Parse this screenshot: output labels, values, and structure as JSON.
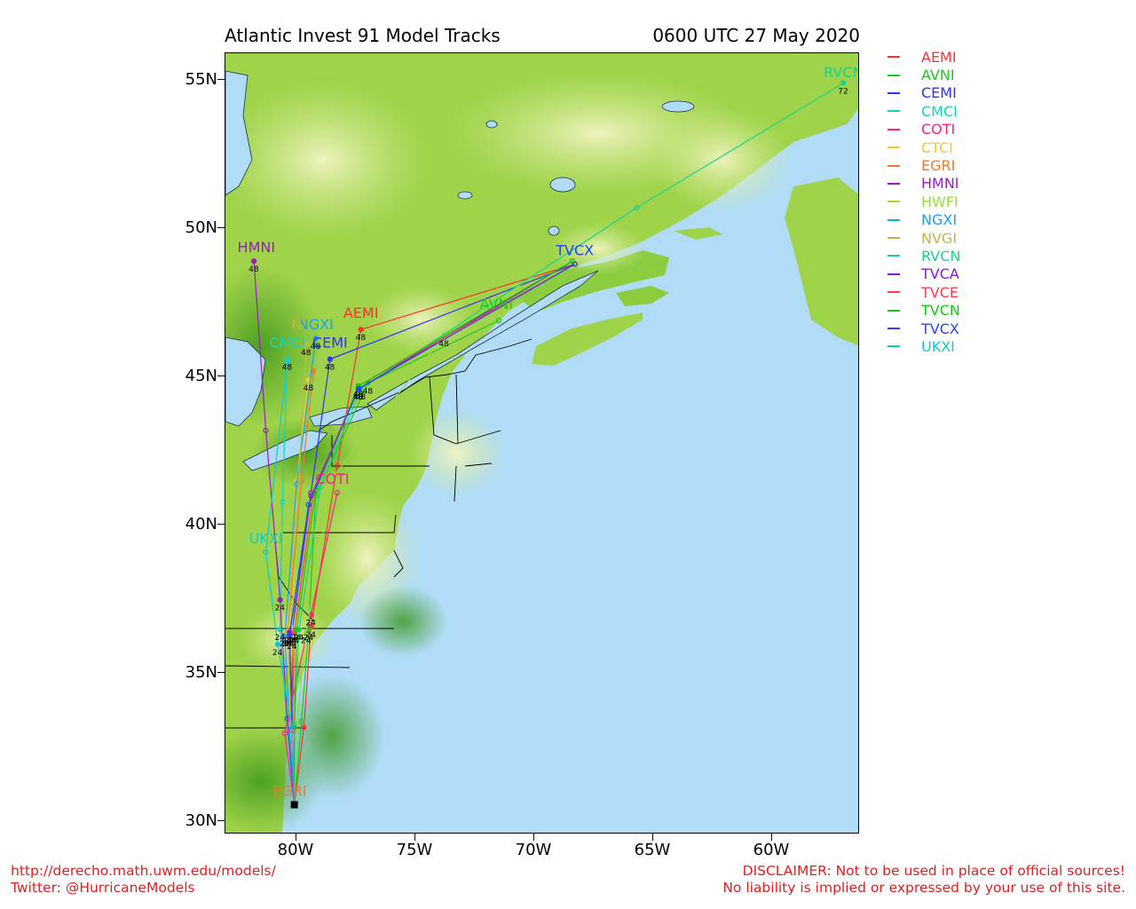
{
  "title_left": "Atlantic Invest 91 Model Tracks",
  "title_right": "0600 UTC 27 May 2020",
  "lat_labels": [
    "55N",
    "50N",
    "45N",
    "40N",
    "35N",
    "30N"
  ],
  "lon_labels": [
    "80W",
    "75W",
    "70W",
    "65W",
    "60W"
  ],
  "map_extent": {
    "lon_min": -83.2,
    "lon_max": -56.5,
    "lat_min": 29.6,
    "lat_max": 55.9
  },
  "colors": {
    "ocean": "#b0dcf7",
    "land_low": "#3e9a1a",
    "land_mid": "#9fd34a",
    "land_high": "#eef2b6",
    "border": "#000000"
  },
  "storm_start": {
    "lon": -80.3,
    "lat": 30.6
  },
  "legend": [
    {
      "name": "AEMI",
      "color": "#ff3030"
    },
    {
      "name": "AVNI",
      "color": "#1ec81e"
    },
    {
      "name": "CEMI",
      "color": "#3030ff"
    },
    {
      "name": "CMCI",
      "color": "#19d2b4"
    },
    {
      "name": "COTI",
      "color": "#ff1e8c"
    },
    {
      "name": "CTCI",
      "color": "#f0c83c"
    },
    {
      "name": "EGRI",
      "color": "#f0782d"
    },
    {
      "name": "HMNI",
      "color": "#a019c8"
    },
    {
      "name": "HWFI",
      "color": "#96dc3c"
    },
    {
      "name": "NGXI",
      "color": "#19a0f0"
    },
    {
      "name": "NVGI",
      "color": "#c8b43c"
    },
    {
      "name": "RVCN",
      "color": "#1ed28c"
    },
    {
      "name": "TVCA",
      "color": "#8c19d2"
    },
    {
      "name": "TVCE",
      "color": "#ff3c50"
    },
    {
      "name": "TVCN",
      "color": "#14c814"
    },
    {
      "name": "TVCX",
      "color": "#2846f0"
    },
    {
      "name": "UKXI",
      "color": "#14c8d2"
    }
  ],
  "tracks": [
    {
      "name": "AEMI",
      "color": "#ff3030",
      "points": [
        [
          -80.3,
          30.6
        ],
        [
          -79.9,
          33.2
        ],
        [
          -79.6,
          36.6
        ],
        [
          -78.5,
          42.0
        ],
        [
          -77.5,
          46.6
        ],
        [
          -68.5,
          48.8
        ]
      ],
      "hours": [
        "",
        "",
        "24",
        "",
        "48",
        ""
      ],
      "label": {
        "text": "AEMI",
        "lon": -77.5,
        "lat": 47.0
      }
    },
    {
      "name": "AVNI",
      "color": "#1ec81e",
      "points": [
        [
          -80.3,
          30.6
        ],
        [
          -80.0,
          33.4
        ],
        [
          -79.7,
          36.5
        ],
        [
          -79.4,
          41.0
        ],
        [
          -77.2,
          44.8
        ],
        [
          -71.7,
          46.9
        ]
      ],
      "hours": [
        "",
        "",
        "24",
        "",
        "48",
        ""
      ],
      "label": {
        "text": "AVNI",
        "lon": -71.8,
        "lat": 47.3
      }
    },
    {
      "name": "CEMI",
      "color": "#3030ff",
      "points": [
        [
          -80.3,
          30.6
        ],
        [
          -80.4,
          33.2
        ],
        [
          -80.4,
          36.4
        ],
        [
          -79.6,
          41.1
        ],
        [
          -78.8,
          45.6
        ],
        [
          -68.5,
          48.8
        ]
      ],
      "hours": [
        "",
        "",
        "24",
        "",
        "48",
        ""
      ],
      "label": {
        "text": "CEMI",
        "lon": -78.8,
        "lat": 46.0
      }
    },
    {
      "name": "CMCI",
      "color": "#19d2b4",
      "points": [
        [
          -80.3,
          30.6
        ],
        [
          -80.6,
          33.1
        ],
        [
          -80.9,
          36.5
        ],
        [
          -80.8,
          40.8
        ],
        [
          -80.6,
          45.6
        ]
      ],
      "hours": [
        "",
        "",
        "24",
        "",
        "48"
      ],
      "label": {
        "text": "CMCI",
        "lon": -80.6,
        "lat": 46.0
      }
    },
    {
      "name": "COTI",
      "color": "#ff1e8c",
      "points": [
        [
          -80.3,
          30.6
        ],
        [
          -80.7,
          33.0
        ],
        [
          -79.6,
          37.0
        ],
        [
          -78.5,
          41.1
        ]
      ],
      "hours": [
        "",
        "",
        "24",
        ""
      ],
      "label": {
        "text": "COTI",
        "lon": -78.7,
        "lat": 41.4
      }
    },
    {
      "name": "CTCI",
      "color": "#f0c83c",
      "points": [
        [
          -80.3,
          30.6
        ],
        [
          -80.5,
          33.3
        ],
        [
          -80.4,
          36.2
        ],
        [
          -80.2,
          41.5
        ],
        [
          -79.7,
          44.9
        ]
      ],
      "hours": [
        "",
        "",
        "24",
        "",
        "48"
      ],
      "label": null
    },
    {
      "name": "EGRI",
      "color": "#f0782d",
      "points": [
        [
          -80.3,
          30.6
        ],
        [
          -80.3,
          33.1
        ],
        [
          -80.6,
          36.3
        ],
        [
          -80.0,
          41.5
        ],
        [
          -79.5,
          45.2
        ]
      ],
      "hours": [
        "",
        "",
        "24",
        "",
        ""
      ],
      "label": {
        "text": "EGRI",
        "lon": -80.5,
        "lat": 30.9
      }
    },
    {
      "name": "HMNI",
      "color": "#a019c8",
      "points": [
        [
          -80.3,
          30.6
        ],
        [
          -80.6,
          33.5
        ],
        [
          -80.9,
          37.5
        ],
        [
          -81.5,
          43.2
        ],
        [
          -82.0,
          48.9
        ]
      ],
      "hours": [
        "",
        "",
        "24",
        "",
        "48"
      ],
      "label": {
        "text": "HMNI",
        "lon": -81.9,
        "lat": 49.2
      }
    },
    {
      "name": "HWFI",
      "color": "#96dc3c",
      "points": [
        [
          -80.3,
          30.6
        ],
        [
          -80.2,
          33.3
        ],
        [
          -79.8,
          36.4
        ],
        [
          -78.7,
          41.6
        ],
        [
          -74.0,
          46.4
        ],
        [
          -65.9,
          50.7
        ]
      ],
      "hours": [
        "",
        "",
        "24",
        "",
        "48",
        ""
      ],
      "label": null
    },
    {
      "name": "NGXI",
      "color": "#19a0f0",
      "points": [
        [
          -80.3,
          30.6
        ],
        [
          -80.5,
          33.2
        ],
        [
          -80.7,
          36.3
        ],
        [
          -80.2,
          41.4
        ],
        [
          -79.4,
          46.3
        ]
      ],
      "hours": [
        "",
        "",
        "24",
        "",
        "48"
      ],
      "label": {
        "text": "NGXI",
        "lon": -79.4,
        "lat": 46.6
      }
    },
    {
      "name": "NVGI",
      "color": "#c8b43c",
      "points": [
        [
          -80.3,
          30.6
        ],
        [
          -80.4,
          33.3
        ],
        [
          -80.6,
          36.4
        ],
        [
          -80.1,
          41.6
        ],
        [
          -79.8,
          46.1
        ]
      ],
      "hours": [
        "",
        "",
        "24",
        "",
        "48"
      ],
      "label": {
        "text": "N",
        "lon": -80.2,
        "lat": 46.6
      }
    },
    {
      "name": "RVCN",
      "color": "#1ed28c",
      "points": [
        [
          -80.3,
          30.6
        ],
        [
          -80.3,
          33.3
        ],
        [
          -80.1,
          36.5
        ],
        [
          -79.2,
          41.3
        ],
        [
          -77.5,
          44.6
        ],
        [
          -65.9,
          50.7
        ],
        [
          -57.2,
          54.9
        ]
      ],
      "hours": [
        "",
        "",
        "24",
        "",
        "48",
        "",
        "72"
      ],
      "label": {
        "text": "RVCN",
        "lon": -57.2,
        "lat": 55.1
      }
    },
    {
      "name": "TVCA",
      "color": "#8c19d2",
      "points": [
        [
          -80.3,
          30.6
        ],
        [
          -80.4,
          33.2
        ],
        [
          -80.5,
          36.4
        ],
        [
          -79.6,
          41.0
        ],
        [
          -77.6,
          44.6
        ],
        [
          -68.6,
          48.9
        ]
      ],
      "hours": [
        "",
        "",
        "24",
        "",
        "48",
        ""
      ],
      "label": null
    },
    {
      "name": "TVCE",
      "color": "#ff3c50",
      "points": [
        [
          -80.3,
          30.6
        ],
        [
          -80.4,
          33.1
        ],
        [
          -80.3,
          36.4
        ],
        [
          -79.5,
          41.1
        ],
        [
          -77.6,
          44.7
        ],
        [
          -68.5,
          48.8
        ]
      ],
      "hours": [
        "",
        "",
        "24",
        "",
        "48",
        ""
      ],
      "label": null
    },
    {
      "name": "TVCN",
      "color": "#14c814",
      "points": [
        [
          -80.3,
          30.6
        ],
        [
          -80.3,
          33.2
        ],
        [
          -80.2,
          36.5
        ],
        [
          -79.4,
          41.2
        ],
        [
          -77.6,
          44.7
        ],
        [
          -68.6,
          48.9
        ]
      ],
      "hours": [
        "",
        "",
        "24",
        "",
        "48",
        ""
      ],
      "label": null
    },
    {
      "name": "TVCX",
      "color": "#2846f0",
      "points": [
        [
          -80.3,
          30.6
        ],
        [
          -80.4,
          33.2
        ],
        [
          -80.5,
          36.3
        ],
        [
          -79.7,
          40.7
        ],
        [
          -77.6,
          44.6
        ],
        [
          -68.5,
          48.8
        ]
      ],
      "hours": [
        "",
        "",
        "24",
        "",
        "48",
        ""
      ],
      "label": {
        "text": "TVCX",
        "lon": -68.5,
        "lat": 49.1
      }
    },
    {
      "name": "UKXI",
      "color": "#14c8d2",
      "points": [
        [
          -80.3,
          30.6
        ],
        [
          -80.4,
          33.2
        ],
        [
          -81.0,
          36.0
        ],
        [
          -81.5,
          39.1
        ],
        [
          -80.6,
          45.5
        ]
      ],
      "hours": [
        "",
        "",
        "24",
        "",
        ""
      ],
      "label": {
        "text": "UKXI",
        "lon": -81.5,
        "lat": 39.4
      }
    }
  ],
  "footer_left": [
    "http://derecho.math.uwm.edu/models/",
    "Twitter: @HurricaneModels"
  ],
  "footer_right": [
    "DISCLAIMER: Not to be used in place of official sources!",
    "No liability is implied or expressed by your use of this site."
  ]
}
